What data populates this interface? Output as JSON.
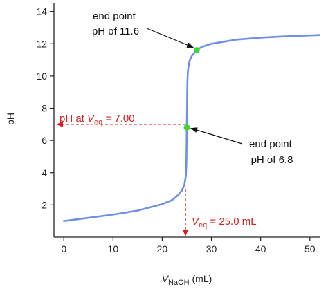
{
  "chart_data": {
    "type": "line",
    "title": "",
    "xlabel": "V",
    "xlabel_sub": "NaOH",
    "xlabel_unit": " (mL)",
    "ylabel": "pH",
    "xlim": [
      -2,
      52
    ],
    "ylim": [
      0,
      14.5
    ],
    "x_ticks": [
      0,
      10,
      20,
      30,
      40,
      50
    ],
    "y_ticks": [
      2,
      4,
      6,
      8,
      10,
      12,
      14
    ],
    "grid": false,
    "series": [
      {
        "color": "#6e8fe6",
        "x": [
          0,
          5,
          10,
          15,
          20,
          22,
          23,
          24,
          24.5,
          24.8,
          24.9,
          25.0,
          25.1,
          25.2,
          25.5,
          26,
          27,
          28,
          30,
          35,
          40,
          45,
          50,
          52
        ],
        "y": [
          1.0,
          1.2,
          1.4,
          1.65,
          2.05,
          2.3,
          2.55,
          2.9,
          3.25,
          3.8,
          4.5,
          7.0,
          9.5,
          10.3,
          10.9,
          11.25,
          11.6,
          11.8,
          12.0,
          12.25,
          12.38,
          12.46,
          12.52,
          12.54
        ]
      }
    ],
    "points": [
      {
        "label": "end point pH of 11.6",
        "x": 27,
        "y": 11.6,
        "color": "#3fd23f"
      },
      {
        "label": "end point pH of 6.8",
        "x": 25,
        "y": 6.8,
        "color": "#3fd23f"
      }
    ],
    "annotations": [
      {
        "id": "ep-high",
        "lines": [
          "end point",
          "pH of 11.6"
        ]
      },
      {
        "id": "ep-low",
        "lines": [
          "end point",
          "pH of 6.8"
        ]
      }
    ],
    "ref_lines": {
      "color": "#d42020",
      "ph_eq": {
        "value": 7.0,
        "label_prefix": "pH at ",
        "label_v": "V",
        "label_sub": "eq",
        "label_suffix": " = 7.00"
      },
      "v_eq": {
        "value": 25.0,
        "label_v": "V",
        "label_sub": "eq",
        "label_suffix": " = 25.0 mL"
      }
    }
  }
}
